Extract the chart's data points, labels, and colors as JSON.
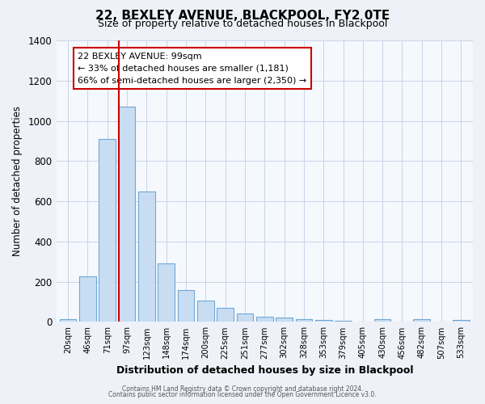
{
  "title": "22, BEXLEY AVENUE, BLACKPOOL, FY2 0TE",
  "subtitle": "Size of property relative to detached houses in Blackpool",
  "xlabel": "Distribution of detached houses by size in Blackpool",
  "ylabel": "Number of detached properties",
  "bar_labels": [
    "20sqm",
    "46sqm",
    "71sqm",
    "97sqm",
    "123sqm",
    "148sqm",
    "174sqm",
    "200sqm",
    "225sqm",
    "251sqm",
    "277sqm",
    "302sqm",
    "328sqm",
    "353sqm",
    "379sqm",
    "405sqm",
    "430sqm",
    "456sqm",
    "482sqm",
    "507sqm",
    "533sqm"
  ],
  "bar_values": [
    15,
    225,
    910,
    1070,
    650,
    290,
    160,
    105,
    70,
    40,
    25,
    20,
    15,
    10,
    5,
    3,
    15,
    2,
    15,
    1,
    10
  ],
  "bar_color": "#c9ddf2",
  "bar_edge_color": "#6fa8d6",
  "vline_index": 3,
  "vline_color": "#cc0000",
  "ylim": [
    0,
    1400
  ],
  "yticks": [
    0,
    200,
    400,
    600,
    800,
    1000,
    1200,
    1400
  ],
  "annotation_title": "22 BEXLEY AVENUE: 99sqm",
  "annotation_line1": "← 33% of detached houses are smaller (1,181)",
  "annotation_line2": "66% of semi-detached houses are larger (2,350) →",
  "annotation_box_color": "#ffffff",
  "annotation_box_edge": "#cc0000",
  "footer1": "Contains HM Land Registry data © Crown copyright and database right 2024.",
  "footer2": "Contains public sector information licensed under the Open Government Licence v3.0.",
  "bg_color": "#eef2f8",
  "plot_bg_color": "#f5f8fd",
  "grid_color": "#c8d4e8"
}
